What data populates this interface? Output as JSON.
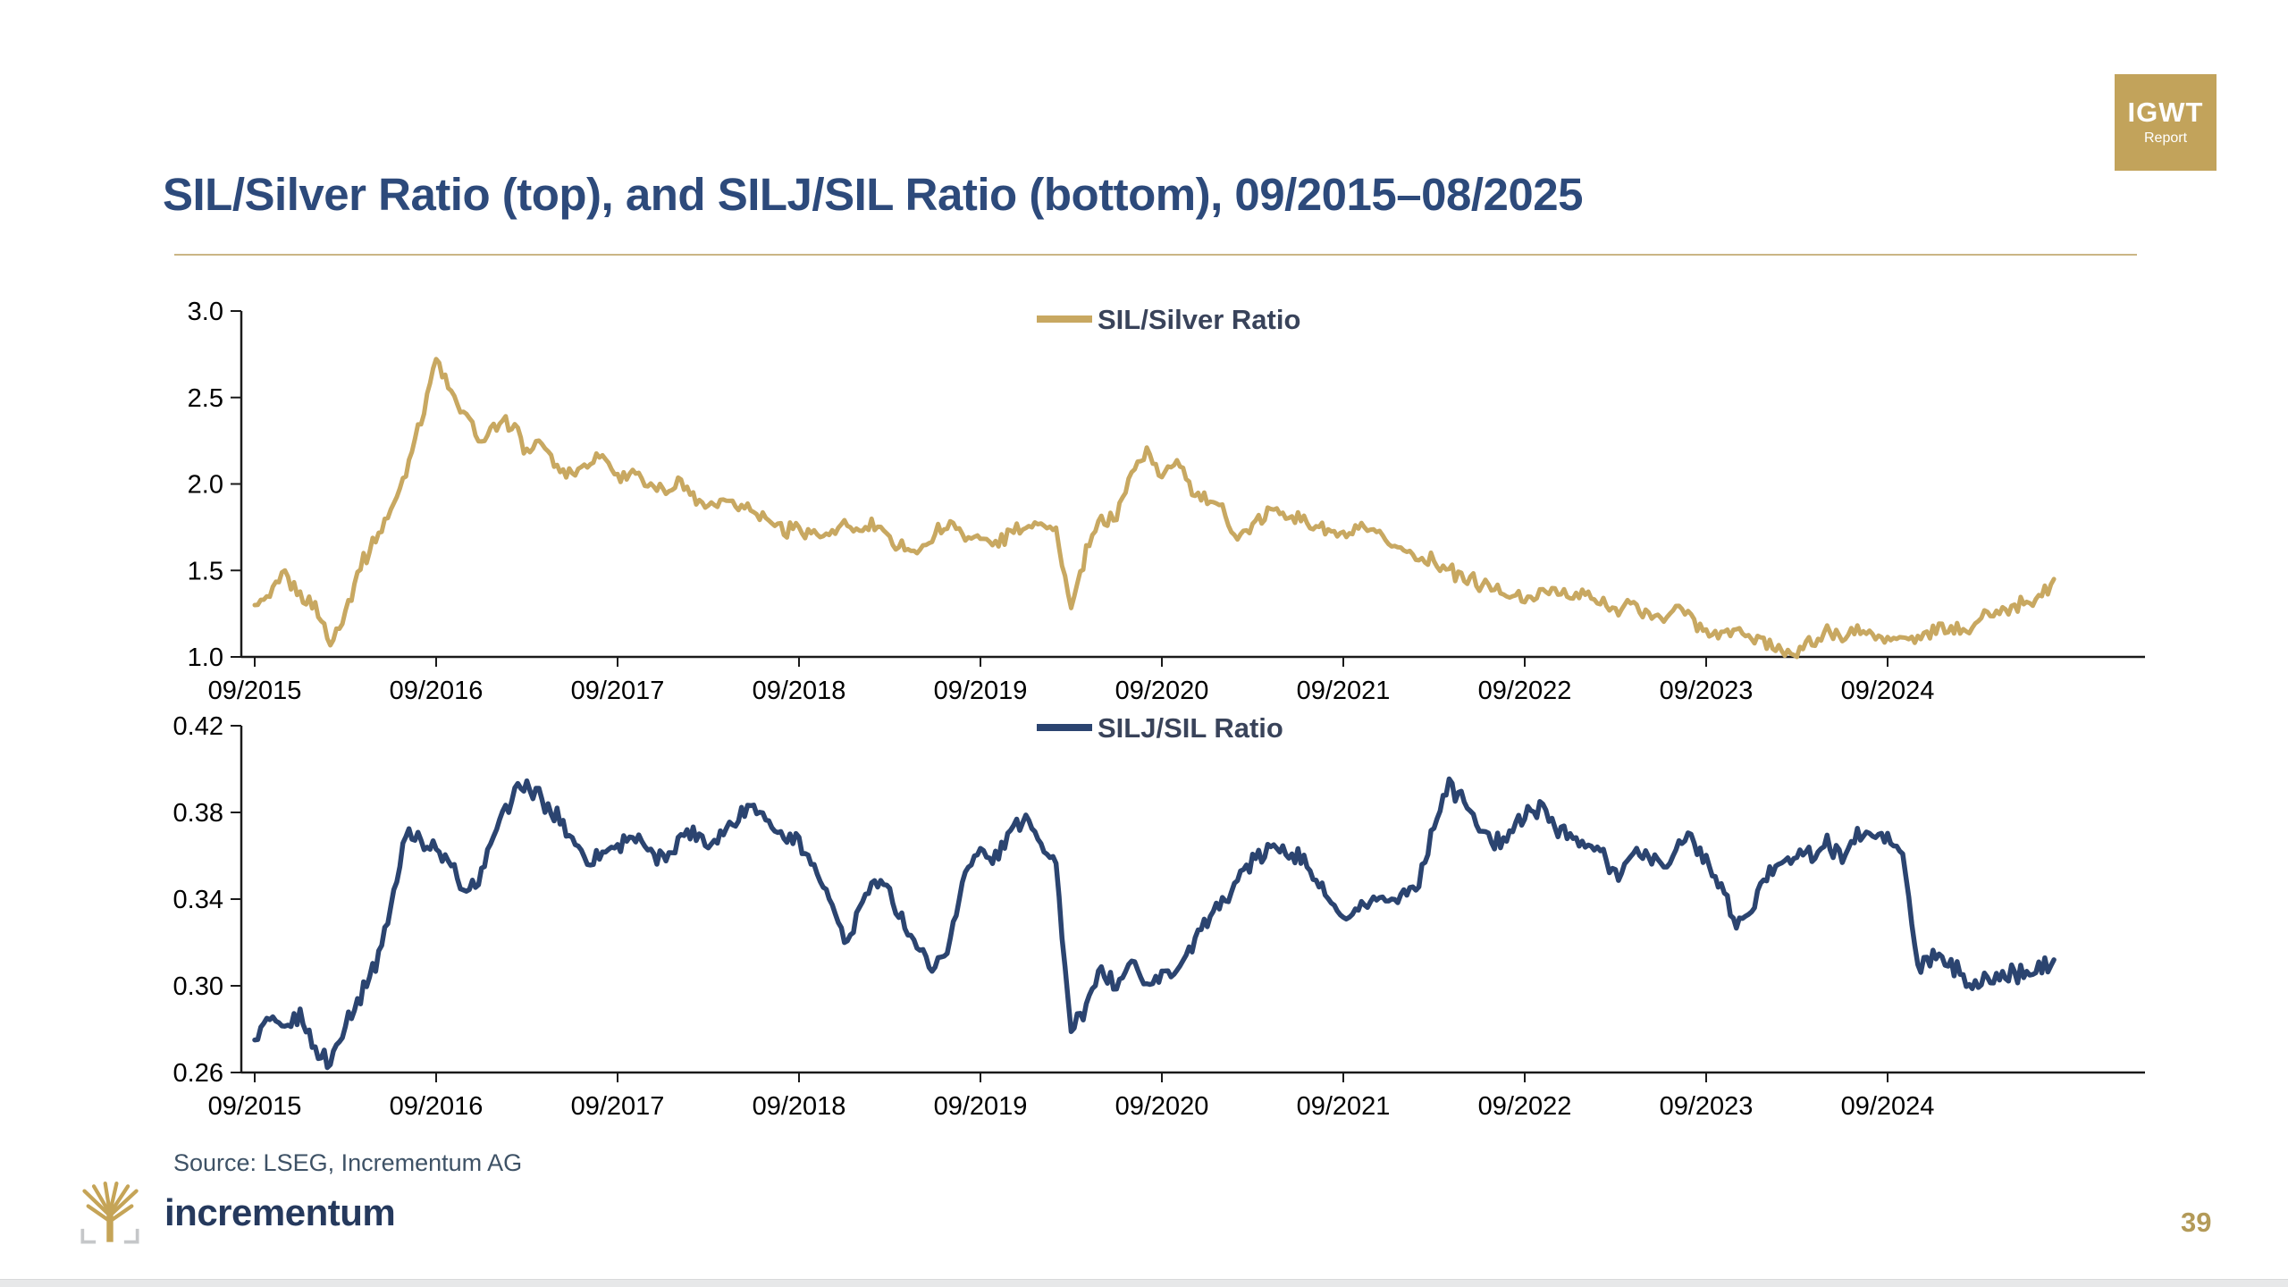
{
  "slide": {
    "title": "SIL/Silver Ratio (top), and SILJ/SIL Ratio (bottom), 09/2015–08/2025",
    "page_number": "39",
    "source": "Source: LSEG, Incrementum AG"
  },
  "igwt_badge": {
    "line1": "IGWT",
    "line2": "Report"
  },
  "brand": {
    "wordmark": "incrementum"
  },
  "colors": {
    "title": "#2d4a7b",
    "gold_line": "#c8a861",
    "navy_line": "#2b4470",
    "legend_text": "#39435a",
    "axis": "#1a1a1a",
    "tick_label": "#000000",
    "rule_gold": "#cbb685",
    "source_text": "#3e5266",
    "badge_gold": "#c2a35b",
    "wordmark_navy": "#25395d",
    "tree_gold": "#c5a457",
    "bracket_gray": "#c5c7c9",
    "page_number_gold": "#b39a58"
  },
  "chart_data": [
    {
      "type": "line",
      "legend": "SIL/Silver Ratio",
      "color_key": "gold_line",
      "ylim": [
        1.0,
        3.0
      ],
      "yticks": [
        "3.0",
        "2.5",
        "2.0",
        "1.5",
        "1.0"
      ],
      "ytick_values": [
        3.0,
        2.5,
        2.0,
        1.5,
        1.0
      ],
      "xticks": [
        "09/2015",
        "09/2016",
        "09/2017",
        "09/2018",
        "09/2019",
        "09/2020",
        "09/2021",
        "09/2022",
        "09/2023",
        "09/2024"
      ],
      "x_note": "monthly values 09/2015 through 08/2025",
      "values": [
        1.3,
        1.36,
        1.47,
        1.36,
        1.3,
        1.07,
        1.27,
        1.52,
        1.68,
        1.85,
        2.08,
        2.38,
        2.72,
        2.52,
        2.38,
        2.25,
        2.33,
        2.36,
        2.18,
        2.24,
        2.1,
        2.06,
        2.12,
        2.17,
        2.05,
        2.08,
        1.98,
        1.96,
        2.02,
        1.93,
        1.88,
        1.92,
        1.88,
        1.85,
        1.79,
        1.73,
        1.74,
        1.72,
        1.7,
        1.76,
        1.73,
        1.76,
        1.68,
        1.64,
        1.6,
        1.72,
        1.76,
        1.72,
        1.68,
        1.66,
        1.71,
        1.76,
        1.79,
        1.73,
        1.27,
        1.62,
        1.79,
        1.81,
        2.06,
        2.2,
        2.03,
        2.16,
        1.96,
        1.89,
        1.86,
        1.69,
        1.76,
        1.83,
        1.85,
        1.79,
        1.76,
        1.73,
        1.7,
        1.73,
        1.72,
        1.66,
        1.61,
        1.58,
        1.55,
        1.5,
        1.46,
        1.42,
        1.39,
        1.36,
        1.33,
        1.36,
        1.39,
        1.34,
        1.37,
        1.31,
        1.28,
        1.31,
        1.25,
        1.22,
        1.29,
        1.22,
        1.15,
        1.12,
        1.15,
        1.1,
        1.08,
        1.05,
        1.02,
        1.1,
        1.14,
        1.12,
        1.16,
        1.12,
        1.09,
        1.12,
        1.1,
        1.14,
        1.17,
        1.15,
        1.21,
        1.25,
        1.28,
        1.31,
        1.35,
        1.45
      ]
    },
    {
      "type": "line",
      "legend": "SILJ/SIL Ratio",
      "color_key": "navy_line",
      "ylim": [
        0.26,
        0.42
      ],
      "yticks": [
        "0.42",
        "0.38",
        "0.34",
        "0.30",
        "0.26"
      ],
      "ytick_values": [
        0.42,
        0.38,
        0.34,
        0.3,
        0.26
      ],
      "xticks": [
        "09/2015",
        "09/2016",
        "09/2017",
        "09/2018",
        "09/2019",
        "09/2020",
        "09/2021",
        "09/2022",
        "09/2023",
        "09/2024"
      ],
      "x_note": "monthly values 09/2015 through 08/2025",
      "values": [
        0.275,
        0.285,
        0.278,
        0.288,
        0.272,
        0.264,
        0.284,
        0.295,
        0.31,
        0.335,
        0.372,
        0.368,
        0.362,
        0.355,
        0.342,
        0.352,
        0.372,
        0.388,
        0.392,
        0.385,
        0.378,
        0.368,
        0.358,
        0.362,
        0.365,
        0.37,
        0.362,
        0.358,
        0.368,
        0.372,
        0.365,
        0.372,
        0.378,
        0.385,
        0.375,
        0.368,
        0.368,
        0.355,
        0.34,
        0.318,
        0.335,
        0.348,
        0.342,
        0.33,
        0.315,
        0.31,
        0.32,
        0.355,
        0.362,
        0.358,
        0.372,
        0.378,
        0.368,
        0.355,
        0.278,
        0.29,
        0.308,
        0.3,
        0.312,
        0.3,
        0.305,
        0.308,
        0.32,
        0.33,
        0.338,
        0.35,
        0.358,
        0.362,
        0.365,
        0.36,
        0.352,
        0.34,
        0.33,
        0.335,
        0.338,
        0.34,
        0.342,
        0.348,
        0.375,
        0.393,
        0.385,
        0.373,
        0.365,
        0.372,
        0.378,
        0.383,
        0.375,
        0.368,
        0.365,
        0.362,
        0.352,
        0.358,
        0.362,
        0.355,
        0.362,
        0.368,
        0.358,
        0.345,
        0.328,
        0.335,
        0.352,
        0.358,
        0.362,
        0.36,
        0.365,
        0.36,
        0.368,
        0.37,
        0.368,
        0.36,
        0.308,
        0.315,
        0.31,
        0.305,
        0.3,
        0.303,
        0.306,
        0.305,
        0.308,
        0.312
      ]
    }
  ]
}
